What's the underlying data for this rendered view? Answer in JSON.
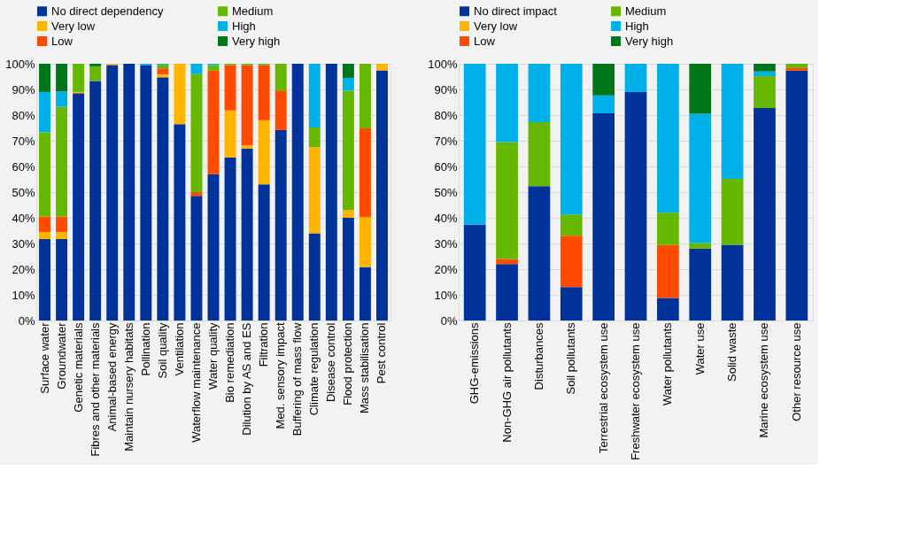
{
  "chart_data": [
    {
      "type": "bar",
      "stacked": true,
      "grid": "y",
      "legend": "top left",
      "categories": [
        "Surface water",
        "Groundwater",
        "Genetic materials",
        "Fibres and other materials",
        "Animal-based energy",
        "Maintain nursery habitats",
        "Pollination",
        "Soil quality",
        "Ventilation",
        "Waterflow maintenance",
        "Water quality",
        "Bio remediation",
        "Dilution by AS and ES",
        "Filtration",
        "Med. sensory impact",
        "Buffering of mass flow",
        "Climate regulation",
        "Disease control",
        "Flood protection",
        "Mass stabilisation",
        "Pest control"
      ],
      "ylim": [
        0,
        100
      ],
      "yticks": [
        {
          "value": 0,
          "label": "0%"
        },
        {
          "value": 10,
          "label": "10%"
        },
        {
          "value": 20,
          "label": "20%"
        },
        {
          "value": 30,
          "label": "30%"
        },
        {
          "value": 40,
          "label": "40%"
        },
        {
          "value": 50,
          "label": "50%"
        },
        {
          "value": 60,
          "label": "60%"
        },
        {
          "value": 70,
          "label": "70%"
        },
        {
          "value": 80,
          "label": "80%"
        },
        {
          "value": 90,
          "label": "90%"
        },
        {
          "value": 100,
          "label": "100%"
        }
      ],
      "series": [
        {
          "name": "No direct dependency",
          "color": "#003399",
          "values": [
            31.7,
            31.7,
            88.5,
            93.3,
            99.5,
            100,
            99.5,
            94.7,
            76.5,
            48.5,
            57,
            63.5,
            67,
            53,
            74.2,
            100,
            34,
            100,
            40,
            20.8,
            97.4
          ]
        },
        {
          "name": "Very low",
          "color": "#ffb400",
          "values": [
            2.8,
            2.8,
            0.5,
            0,
            0.5,
            0,
            0,
            1.2,
            23.5,
            0,
            0,
            18.3,
            1.3,
            25,
            0,
            0,
            33.5,
            0,
            3,
            19.5,
            2.6
          ]
        },
        {
          "name": "Low",
          "color": "#ff4b00",
          "values": [
            6,
            6,
            0,
            0,
            0,
            0,
            0,
            2.3,
            0,
            1.5,
            40.3,
            17.7,
            31.2,
            21.5,
            15.4,
            0,
            0,
            0,
            0,
            34.5,
            0
          ]
        },
        {
          "name": "Medium",
          "color": "#66b700",
          "values": [
            32.8,
            42.7,
            11,
            5.7,
            0,
            0,
            0,
            1.5,
            0,
            46,
            2.2,
            0.5,
            0.5,
            0.5,
            10.4,
            0,
            7.7,
            0,
            46.5,
            25.2,
            0
          ]
        },
        {
          "name": "High",
          "color": "#00b0e8",
          "values": [
            15.7,
            6,
            0,
            0,
            0,
            0,
            0.5,
            0.3,
            0,
            4,
            0.5,
            0,
            0,
            0,
            0,
            0,
            24.8,
            0,
            5,
            0,
            0
          ]
        },
        {
          "name": "Very high",
          "color": "#00761a",
          "values": [
            11,
            10.8,
            0,
            1,
            0,
            0,
            0,
            0,
            0,
            0,
            0,
            0,
            0,
            0,
            0,
            0,
            0,
            0,
            5.5,
            0,
            0
          ]
        }
      ]
    },
    {
      "type": "bar",
      "stacked": true,
      "grid": "y",
      "legend": "top left",
      "categories": [
        "GHG-emissions",
        "Non-GHG air pollutants",
        "Disturbances",
        "Soil pollutants",
        "Terrestrial ecosystem use",
        "Freshwater ecosystem use",
        "Water pollutants",
        "Water use",
        "Solid waste",
        "Marine ecosystem use",
        "Other resource use"
      ],
      "ylim": [
        0,
        100
      ],
      "yticks": [
        {
          "value": 0,
          "label": "0%"
        },
        {
          "value": 10,
          "label": "10%"
        },
        {
          "value": 20,
          "label": "20%"
        },
        {
          "value": 30,
          "label": "30%"
        },
        {
          "value": 40,
          "label": "40%"
        },
        {
          "value": 50,
          "label": "50%"
        },
        {
          "value": 60,
          "label": "60%"
        },
        {
          "value": 70,
          "label": "70%"
        },
        {
          "value": 80,
          "label": "80%"
        },
        {
          "value": 90,
          "label": "90%"
        },
        {
          "value": 100,
          "label": "100%"
        }
      ],
      "series": [
        {
          "name": "No direct impact",
          "color": "#003399",
          "values": [
            37.3,
            22,
            52.3,
            13,
            80.7,
            89,
            8.8,
            28,
            29.5,
            82.8,
            97.3
          ]
        },
        {
          "name": "Very low",
          "color": "#ffb400",
          "values": [
            0,
            0,
            0,
            0,
            0,
            0,
            0,
            0,
            0,
            0,
            0
          ]
        },
        {
          "name": "Low",
          "color": "#ff4b00",
          "values": [
            0,
            2,
            0,
            20,
            0,
            0,
            20.6,
            0,
            0,
            0,
            1
          ]
        },
        {
          "name": "Medium",
          "color": "#66b700",
          "values": [
            0,
            45.5,
            24.9,
            8.3,
            0,
            0,
            12.6,
            2.2,
            25.7,
            12.4,
            1.7
          ]
        },
        {
          "name": "High",
          "color": "#00b0e8",
          "values": [
            62.7,
            30.5,
            22.8,
            58.7,
            7,
            11,
            58,
            50.3,
            44.8,
            1.8,
            0
          ]
        },
        {
          "name": "Very high",
          "color": "#00761a",
          "values": [
            0,
            0,
            0,
            0,
            12.3,
            0,
            0,
            19.5,
            0,
            3,
            0
          ]
        }
      ]
    }
  ]
}
